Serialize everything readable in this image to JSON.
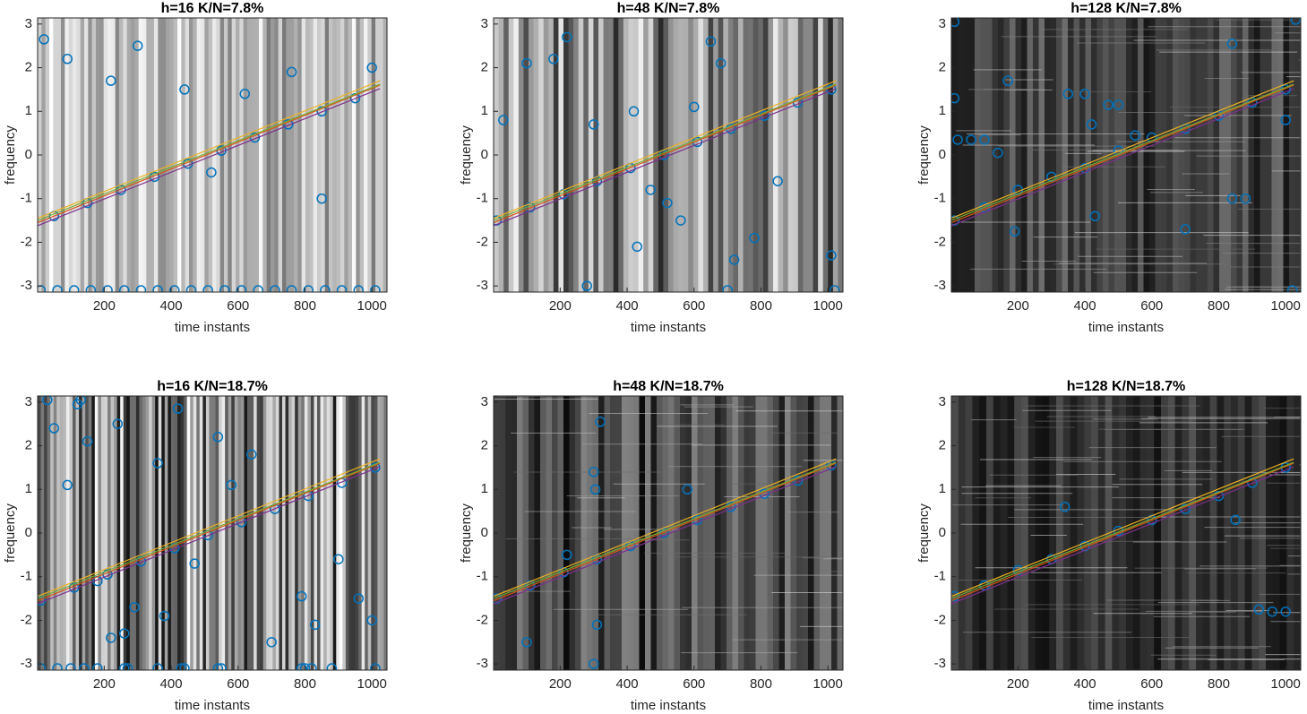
{
  "chart_data": [
    {
      "type": "scatter",
      "title": "h=16 K/N=7.8%",
      "xlabel": "time instants",
      "ylabel": "frequency",
      "xlim": [
        1,
        1045
      ],
      "ylim": [
        -3.14,
        3.14
      ],
      "xticks": [
        200,
        400,
        600,
        800,
        1000
      ],
      "yticks": [
        -3,
        -2,
        -1,
        0,
        1,
        2,
        3
      ],
      "series": [
        {
          "type": "scatter",
          "color": "#0072bd",
          "x": [
            10,
            60,
            110,
            160,
            210,
            260,
            310,
            360,
            410,
            460,
            510,
            560,
            610,
            660,
            710,
            760,
            810,
            860,
            910,
            960,
            1010,
            50,
            150,
            250,
            350,
            450,
            550,
            650,
            750,
            850,
            950,
            20,
            90,
            220,
            300,
            440,
            520,
            620,
            760,
            850,
            1000
          ],
          "values": [
            -3.1,
            -3.1,
            -3.1,
            -3.1,
            -3.1,
            -3.1,
            -3.1,
            -3.1,
            -3.1,
            -3.1,
            -3.1,
            -3.1,
            -3.1,
            -3.1,
            -3.1,
            -3.1,
            -3.1,
            -3.1,
            -3.1,
            -3.1,
            -3.1,
            -1.4,
            -1.1,
            -0.8,
            -0.5,
            -0.2,
            0.1,
            0.4,
            0.7,
            1.0,
            1.3,
            2.65,
            2.2,
            1.7,
            2.5,
            1.5,
            -0.4,
            1.4,
            1.9,
            -1.0,
            2.0
          ]
        },
        {
          "type": "line",
          "color": "#d95319",
          "x": [
            1,
            1024
          ],
          "values": [
            -1.55,
            1.6
          ]
        },
        {
          "type": "line",
          "color": "#edb120",
          "x": [
            1,
            1024
          ],
          "values": [
            -1.45,
            1.7
          ]
        },
        {
          "type": "line",
          "color": "#7e2f8e",
          "x": [
            1,
            1024
          ],
          "values": [
            -1.62,
            1.52
          ]
        },
        {
          "type": "line",
          "color": "#77ac30",
          "x": [
            1,
            1024
          ],
          "values": [
            -1.5,
            1.62
          ]
        }
      ]
    },
    {
      "type": "scatter",
      "title": "h=48 K/N=7.8%",
      "xlabel": "time instants",
      "ylabel": "frequency",
      "xlim": [
        1,
        1045
      ],
      "ylim": [
        -3.14,
        3.14
      ],
      "xticks": [
        200,
        400,
        600,
        800,
        1000
      ],
      "yticks": [
        -3,
        -2,
        -1,
        0,
        1,
        2,
        3
      ],
      "series": [
        {
          "type": "scatter",
          "color": "#0072bd",
          "x": [
            10,
            110,
            210,
            310,
            410,
            510,
            610,
            710,
            810,
            910,
            1010,
            30,
            100,
            180,
            220,
            300,
            430,
            470,
            520,
            560,
            600,
            650,
            680,
            700,
            720,
            780,
            850,
            1010,
            1020,
            280,
            420
          ],
          "values": [
            -1.5,
            -1.2,
            -0.9,
            -0.6,
            -0.3,
            0.0,
            0.3,
            0.6,
            0.9,
            1.2,
            1.5,
            0.8,
            2.1,
            2.2,
            2.7,
            0.7,
            -2.1,
            -0.8,
            -1.1,
            -1.5,
            1.1,
            2.6,
            2.1,
            -3.1,
            -2.4,
            -1.9,
            -0.6,
            -2.3,
            -3.1,
            -3.0,
            1.0
          ]
        },
        {
          "type": "line",
          "color": "#d95319",
          "x": [
            1,
            1024
          ],
          "values": [
            -1.55,
            1.6
          ]
        },
        {
          "type": "line",
          "color": "#edb120",
          "x": [
            1,
            1024
          ],
          "values": [
            -1.45,
            1.7
          ]
        },
        {
          "type": "line",
          "color": "#7e2f8e",
          "x": [
            1,
            1024
          ],
          "values": [
            -1.62,
            1.52
          ]
        },
        {
          "type": "line",
          "color": "#77ac30",
          "x": [
            1,
            1024
          ],
          "values": [
            -1.5,
            1.62
          ]
        }
      ]
    },
    {
      "type": "scatter",
      "title": "h=128 K/N=7.8%",
      "xlabel": "time instants",
      "ylabel": "frequency",
      "xlim": [
        1,
        1045
      ],
      "ylim": [
        -3.14,
        3.14
      ],
      "xticks": [
        200,
        400,
        600,
        800,
        1000
      ],
      "yticks": [
        -3,
        -2,
        -1,
        0,
        1,
        2,
        3
      ],
      "series": [
        {
          "type": "scatter",
          "color": "#0072bd",
          "x": [
            10,
            100,
            200,
            300,
            400,
            500,
            600,
            700,
            800,
            900,
            1000,
            10,
            10,
            20,
            60,
            100,
            140,
            170,
            350,
            400,
            420,
            430,
            470,
            500,
            550,
            700,
            840,
            840,
            880,
            1000,
            1020,
            1030,
            190
          ],
          "values": [
            -1.5,
            -1.2,
            -0.8,
            -0.5,
            -0.3,
            0.1,
            0.4,
            0.6,
            0.9,
            1.2,
            1.5,
            3.05,
            1.3,
            0.35,
            0.35,
            0.35,
            0.05,
            1.7,
            1.4,
            1.4,
            0.7,
            -1.4,
            1.15,
            1.15,
            0.45,
            -1.7,
            2.55,
            -1.0,
            -1.0,
            0.8,
            -3.1,
            3.1,
            -1.75
          ]
        },
        {
          "type": "line",
          "color": "#d95319",
          "x": [
            1,
            1024
          ],
          "values": [
            -1.55,
            1.6
          ]
        },
        {
          "type": "line",
          "color": "#edb120",
          "x": [
            1,
            1024
          ],
          "values": [
            -1.45,
            1.7
          ]
        },
        {
          "type": "line",
          "color": "#7e2f8e",
          "x": [
            1,
            1024
          ],
          "values": [
            -1.62,
            1.52
          ]
        },
        {
          "type": "line",
          "color": "#77ac30",
          "x": [
            1,
            1024
          ],
          "values": [
            -1.5,
            1.62
          ]
        }
      ]
    },
    {
      "type": "scatter",
      "title": "h=16 K/N=18.7%",
      "xlabel": "time instants",
      "ylabel": "frequency",
      "xlim": [
        1,
        1045
      ],
      "ylim": [
        -3.14,
        3.14
      ],
      "xticks": [
        200,
        400,
        600,
        800,
        1000
      ],
      "yticks": [
        -3,
        -2,
        -1,
        0,
        1,
        2,
        3
      ],
      "series": [
        {
          "type": "scatter",
          "color": "#0072bd",
          "x": [
            10,
            110,
            210,
            310,
            410,
            510,
            610,
            710,
            810,
            910,
            1010,
            10,
            60,
            100,
            140,
            180,
            260,
            270,
            360,
            430,
            440,
            540,
            550,
            790,
            800,
            820,
            880,
            1010,
            30,
            50,
            90,
            120,
            130,
            150,
            180,
            220,
            240,
            260,
            290,
            360,
            380,
            420,
            470,
            540,
            580,
            640,
            700,
            790,
            830,
            900,
            960,
            1000
          ],
          "values": [
            -1.55,
            -1.25,
            -0.95,
            -0.65,
            -0.35,
            -0.05,
            0.25,
            0.55,
            0.85,
            1.15,
            1.5,
            -3.1,
            -3.1,
            -3.1,
            -3.1,
            -3.1,
            -3.1,
            -3.1,
            -3.1,
            -3.1,
            -3.1,
            -3.1,
            -3.1,
            -3.1,
            -3.1,
            -3.1,
            -3.1,
            -3.1,
            3.05,
            2.4,
            1.1,
            2.95,
            3.05,
            2.1,
            -1.1,
            -2.4,
            2.5,
            -2.3,
            -1.7,
            1.6,
            -1.9,
            2.85,
            -0.7,
            2.2,
            1.1,
            1.8,
            -2.5,
            -1.45,
            -2.1,
            -0.6,
            -1.5,
            -2.0
          ]
        },
        {
          "type": "line",
          "color": "#d95319",
          "x": [
            1,
            1024
          ],
          "values": [
            -1.55,
            1.6
          ]
        },
        {
          "type": "line",
          "color": "#edb120",
          "x": [
            1,
            1024
          ],
          "values": [
            -1.45,
            1.7
          ]
        },
        {
          "type": "line",
          "color": "#7e2f8e",
          "x": [
            1,
            1024
          ],
          "values": [
            -1.62,
            1.52
          ]
        },
        {
          "type": "line",
          "color": "#77ac30",
          "x": [
            1,
            1024
          ],
          "values": [
            -1.5,
            1.62
          ]
        }
      ]
    },
    {
      "type": "scatter",
      "title": "h=48 K/N=18.7%",
      "xlabel": "time instants",
      "ylabel": "frequency",
      "xlim": [
        1,
        1045
      ],
      "ylim": [
        -3.14,
        3.14
      ],
      "xticks": [
        200,
        400,
        600,
        800,
        1000
      ],
      "yticks": [
        -3,
        -2,
        -1,
        0,
        1,
        2,
        3
      ],
      "series": [
        {
          "type": "scatter",
          "color": "#0072bd",
          "x": [
            10,
            110,
            210,
            310,
            410,
            510,
            610,
            710,
            810,
            910,
            1010,
            100,
            220,
            300,
            305,
            310,
            300,
            320,
            580
          ],
          "values": [
            -1.5,
            -1.2,
            -0.9,
            -0.6,
            -0.3,
            0.0,
            0.3,
            0.6,
            0.9,
            1.2,
            1.55,
            -2.5,
            -0.5,
            1.4,
            1.0,
            -2.1,
            -3.0,
            2.55,
            1.0
          ]
        },
        {
          "type": "line",
          "color": "#d95319",
          "x": [
            1,
            1024
          ],
          "values": [
            -1.55,
            1.6
          ]
        },
        {
          "type": "line",
          "color": "#edb120",
          "x": [
            1,
            1024
          ],
          "values": [
            -1.45,
            1.7
          ]
        },
        {
          "type": "line",
          "color": "#7e2f8e",
          "x": [
            1,
            1024
          ],
          "values": [
            -1.62,
            1.52
          ]
        },
        {
          "type": "line",
          "color": "#77ac30",
          "x": [
            1,
            1024
          ],
          "values": [
            -1.5,
            1.62
          ]
        }
      ]
    },
    {
      "type": "scatter",
      "title": "h=128 K/N=18.7%",
      "xlabel": "time instants",
      "ylabel": "frequency",
      "xlim": [
        1,
        1045
      ],
      "ylim": [
        -3.14,
        3.14
      ],
      "xticks": [
        200,
        400,
        600,
        800,
        1000
      ],
      "yticks": [
        -3,
        -2,
        -1,
        0,
        1,
        2,
        3
      ],
      "series": [
        {
          "type": "scatter",
          "color": "#0072bd",
          "x": [
            10,
            100,
            200,
            300,
            400,
            500,
            600,
            700,
            800,
            900,
            1000,
            340,
            850,
            920,
            960,
            1000
          ],
          "values": [
            -1.45,
            -1.2,
            -0.85,
            -0.6,
            -0.3,
            0.05,
            0.3,
            0.55,
            0.85,
            1.15,
            1.5,
            0.6,
            0.3,
            -1.75,
            -1.8,
            -1.8
          ]
        },
        {
          "type": "line",
          "color": "#d95319",
          "x": [
            1,
            1024
          ],
          "values": [
            -1.55,
            1.6
          ]
        },
        {
          "type": "line",
          "color": "#edb120",
          "x": [
            1,
            1024
          ],
          "values": [
            -1.45,
            1.7
          ]
        },
        {
          "type": "line",
          "color": "#7e2f8e",
          "x": [
            1,
            1024
          ],
          "values": [
            -1.62,
            1.52
          ]
        },
        {
          "type": "line",
          "color": "#77ac30",
          "x": [
            1,
            1024
          ],
          "values": [
            -1.5,
            1.62
          ]
        }
      ]
    }
  ]
}
